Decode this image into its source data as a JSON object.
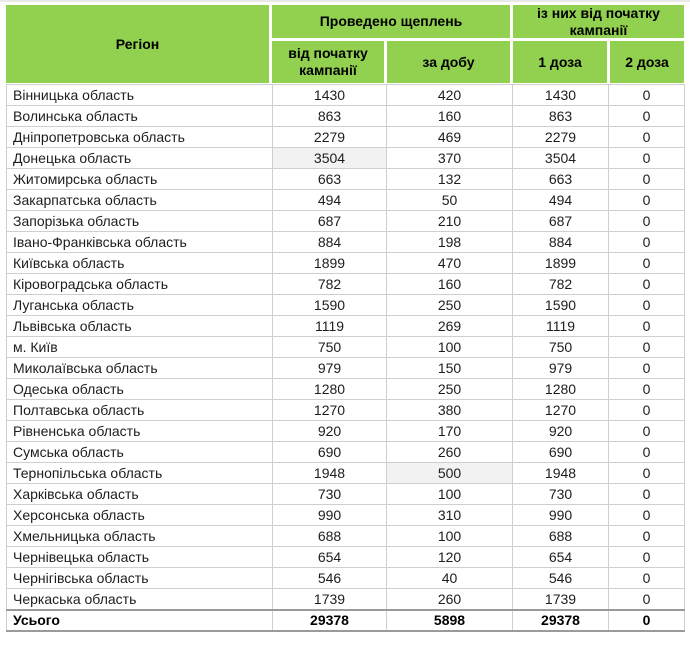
{
  "header": {
    "region": "Регіон",
    "group_vaccinations": "Проведено щеплень",
    "group_since_start": "із них від початку кампанії",
    "sub_since_start": "від початку кампанії",
    "sub_per_day": "за добу",
    "sub_dose1": "1 доза",
    "sub_dose2": "2 доза"
  },
  "chart_data": {
    "type": "table",
    "columns": [
      "Регіон",
      "Проведено щеплень — від початку кампанії",
      "Проведено щеплень — за добу",
      "із них від початку кампанії — 1 доза",
      "із них від початку кампанії — 2 доза"
    ],
    "rows": [
      [
        "Вінницька область",
        1430,
        420,
        1430,
        0
      ],
      [
        "Волинська область",
        863,
        160,
        863,
        0
      ],
      [
        "Дніпропетровська область",
        2279,
        469,
        2279,
        0
      ],
      [
        "Донецька область",
        3504,
        370,
        3504,
        0
      ],
      [
        "Житомирська область",
        663,
        132,
        663,
        0
      ],
      [
        "Закарпатська область",
        494,
        50,
        494,
        0
      ],
      [
        "Запорізька область",
        687,
        210,
        687,
        0
      ],
      [
        "Івано-Франківська область",
        884,
        198,
        884,
        0
      ],
      [
        "Київська область",
        1899,
        470,
        1899,
        0
      ],
      [
        "Кіровоградська область",
        782,
        160,
        782,
        0
      ],
      [
        "Луганська область",
        1590,
        250,
        1590,
        0
      ],
      [
        "Львівська область",
        1119,
        269,
        1119,
        0
      ],
      [
        "м. Київ",
        750,
        100,
        750,
        0
      ],
      [
        "Миколаївська область",
        979,
        150,
        979,
        0
      ],
      [
        "Одеська область",
        1280,
        250,
        1280,
        0
      ],
      [
        "Полтавська область",
        1270,
        380,
        1270,
        0
      ],
      [
        "Рівненська область",
        920,
        170,
        920,
        0
      ],
      [
        "Сумська область",
        690,
        260,
        690,
        0
      ],
      [
        "Тернопільська область",
        1948,
        500,
        1948,
        0
      ],
      [
        "Харківська область",
        730,
        100,
        730,
        0
      ],
      [
        "Херсонська область",
        990,
        310,
        990,
        0
      ],
      [
        "Хмельницька область",
        688,
        100,
        688,
        0
      ],
      [
        "Чернівецька область",
        654,
        120,
        654,
        0
      ],
      [
        "Чернігівська область",
        546,
        40,
        546,
        0
      ],
      [
        "Черкаська область",
        1739,
        260,
        1739,
        0
      ]
    ],
    "total": [
      "Усього",
      29378,
      5898,
      29378,
      0
    ],
    "highlighted_cells": [
      [
        3,
        1
      ],
      [
        18,
        2
      ]
    ]
  },
  "colors": {
    "header_bg": "#92D050",
    "grid_line": "#cfcfcf",
    "highlight_bg": "#f2f2f2",
    "total_border": "#9a9a9a"
  }
}
